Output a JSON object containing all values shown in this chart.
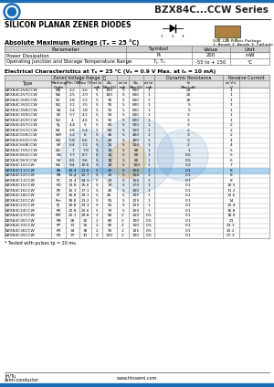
{
  "title": "BZX84C...CCW Series",
  "subtitle": "SILICON PLANAR ZENER DIODES",
  "abs_max_headers": [
    "Parameter",
    "Symbol",
    "Value",
    "Unit"
  ],
  "abs_max_rows": [
    [
      "Power Dissipation",
      "PD",
      "200",
      "mW"
    ],
    [
      "Operating Junction and Storage Temperature Range",
      "Tj, Ts",
      "-55 to + 150",
      "degC"
    ]
  ],
  "elec_rows": [
    [
      "BZX84C2V4CCW",
      "NA",
      "2.2",
      "2.6",
      "5",
      "100",
      "5",
      "600",
      "1",
      "50",
      "1"
    ],
    [
      "BZX84C2V7CCW",
      "NB",
      "2.5",
      "2.9",
      "5",
      "100",
      "5",
      "600",
      "1",
      "20",
      "1"
    ],
    [
      "BZX84C3V0CCW",
      "NC",
      "2.8",
      "3.2",
      "5",
      "95",
      "5",
      "600",
      "1",
      "20",
      "1"
    ],
    [
      "BZX84C3V3CCW",
      "ND",
      "3.1",
      "3.5",
      "5",
      "95",
      "5",
      "600",
      "1",
      "5",
      "1"
    ],
    [
      "BZX84C3V6CCW",
      "NE",
      "3.4",
      "3.8",
      "5",
      "90",
      "5",
      "600",
      "1",
      "5",
      "1"
    ],
    [
      "BZX84C3V9CCW",
      "NF",
      "3.7",
      "4.1",
      "5",
      "90",
      "5",
      "600",
      "1",
      "3",
      "1"
    ],
    [
      "BZX84C4V3CCW",
      "NH",
      "4",
      "4.6",
      "5",
      "90",
      "5",
      "600",
      "1",
      "3",
      "1"
    ],
    [
      "BZX84C4V7CCW",
      "NJ",
      "4.4",
      "5",
      "5",
      "60",
      "5",
      "500",
      "1",
      "3",
      "2"
    ],
    [
      "BZX84C5V1CCW",
      "NK",
      "4.8",
      "5.4",
      "5",
      "60",
      "5",
      "500",
      "1",
      "2",
      "2"
    ],
    [
      "BZX84C5V6CCW",
      "NM",
      "5.2",
      "6",
      "5",
      "40",
      "5",
      "400",
      "1",
      "3",
      "2"
    ],
    [
      "BZX84C6V2CCW",
      "NN",
      "5.8",
      "6.6",
      "5",
      "40",
      "5",
      "400",
      "1",
      "3",
      "4"
    ],
    [
      "BZX84C6V8CCW",
      "NP",
      "6.4",
      "7.2",
      "5",
      "15",
      "5",
      "150",
      "1",
      "2",
      "4"
    ],
    [
      "BZX84C7V5CCW",
      "NR",
      "7",
      "7.9",
      "5",
      "15",
      "5",
      "80",
      "1",
      "1",
      "5"
    ],
    [
      "BZX84C8V2CCW",
      "NS",
      "7.7",
      "8.7",
      "5",
      "15",
      "5",
      "80",
      "1",
      "0.5",
      "5"
    ],
    [
      "BZX84C9V1CCW",
      "NY",
      "8.5",
      "9.6",
      "5",
      "15",
      "5",
      "80",
      "1",
      "0.5",
      "6"
    ],
    [
      "BZX84C10CCW",
      "NZ",
      "9.4",
      "10.6",
      "5",
      "20",
      "5",
      "100",
      "1",
      "0.2",
      "7"
    ],
    [
      "BZX84C11CCW",
      "PA",
      "10.4",
      "11.6",
      "5",
      "20",
      "5",
      "150",
      "1",
      "0.1",
      "8"
    ],
    [
      "BZX84C12CCW",
      "PB",
      "11.4",
      "12.7",
      "5",
      "25",
      "5",
      "150",
      "1",
      "0.1",
      "8"
    ],
    [
      "BZX84C13CCW",
      "PC",
      "12.4",
      "14.1",
      "5",
      "30",
      "5",
      "150",
      "1",
      "0.1",
      "8"
    ],
    [
      "BZX84C15CCW",
      "PD",
      "13.8",
      "15.6",
      "5",
      "30",
      "5",
      "170",
      "1",
      "0.1",
      "10.5"
    ],
    [
      "BZX84C16CCW",
      "PE",
      "15.3",
      "17.1",
      "5",
      "40",
      "5",
      "200",
      "1",
      "0.1",
      "11.2"
    ],
    [
      "BZX84C18CCW",
      "PF",
      "16.8",
      "19.1",
      "5",
      "45",
      "5",
      "200",
      "1",
      "0.1",
      "12.6"
    ],
    [
      "BZX84C20CCW",
      "Pm",
      "18.8",
      "21.2",
      "5",
      "55",
      "5",
      "225",
      "1",
      "0.1",
      "14"
    ],
    [
      "BZX84C22CCW",
      "PJ",
      "20.8",
      "23.3",
      "5",
      "55",
      "5",
      "225",
      "1",
      "0.1",
      "15.4"
    ],
    [
      "BZX84C24CCW",
      "PK",
      "22.8",
      "25.6",
      "5",
      "70",
      "5",
      "250",
      "1",
      "0.1",
      "16.8"
    ],
    [
      "BZX84C27CCW",
      "PM",
      "25.1",
      "29.8",
      "2",
      "80",
      "2",
      "250",
      "0.5",
      "0.1",
      "18.9"
    ],
    [
      "BZX84C30CCW",
      "PN",
      "28",
      "32",
      "2",
      "80",
      "2",
      "300",
      "0.5",
      "0.1",
      "21"
    ],
    [
      "BZX84C33CCW",
      "PP",
      "31",
      "35",
      "2",
      "80",
      "2",
      "300",
      "0.5",
      "0.1",
      "23.1"
    ],
    [
      "BZX84C36CCW",
      "PR",
      "34",
      "38",
      "2",
      "90",
      "2",
      "325",
      "0.5",
      "0.1",
      "25.2"
    ],
    [
      "BZX84C39CCW",
      "PX",
      "37",
      "41",
      "2",
      "130",
      "2",
      "300",
      "0.5",
      "0.1",
      "27.3"
    ]
  ],
  "note": "* Tested with pulses tp = 20 ms.",
  "footer_left1": "JH/Tu",
  "footer_left2": "semi-conductor",
  "footer_center": "www.htssemi.com",
  "bg_color": "#ffffff",
  "highlight_blue": "#aad4f0",
  "highlight_row": 16
}
